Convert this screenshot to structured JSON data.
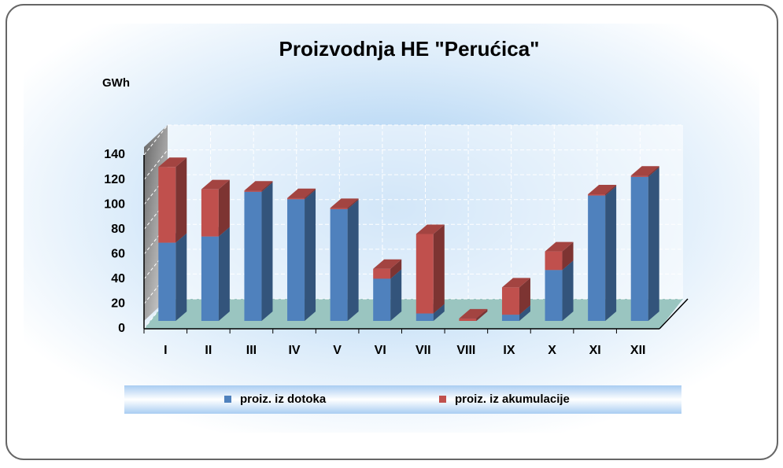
{
  "chart_data": {
    "type": "bar3d_stacked",
    "title": "Proizvodnja HE \"Perućica\"",
    "y_label": "GWh",
    "categories": [
      "I",
      "II",
      "III",
      "IV",
      "V",
      "VI",
      "VII",
      "VIII",
      "IX",
      "X",
      "XI",
      "XII"
    ],
    "series": [
      {
        "name": "proiz. iz dotoka",
        "color": "#4f81bd",
        "values": [
          63,
          68,
          104,
          98,
          90,
          34,
          6,
          0,
          5,
          41,
          101,
          116
        ]
      },
      {
        "name": "proiz. iz akumulacije",
        "color": "#c0504d",
        "values": [
          61,
          38,
          1,
          1,
          1,
          8,
          64,
          2,
          22,
          15,
          1,
          1
        ]
      }
    ],
    "ylim": [
      0,
      140
    ],
    "yticks": [
      0,
      20,
      40,
      60,
      80,
      100,
      120,
      140
    ],
    "grid": true
  }
}
